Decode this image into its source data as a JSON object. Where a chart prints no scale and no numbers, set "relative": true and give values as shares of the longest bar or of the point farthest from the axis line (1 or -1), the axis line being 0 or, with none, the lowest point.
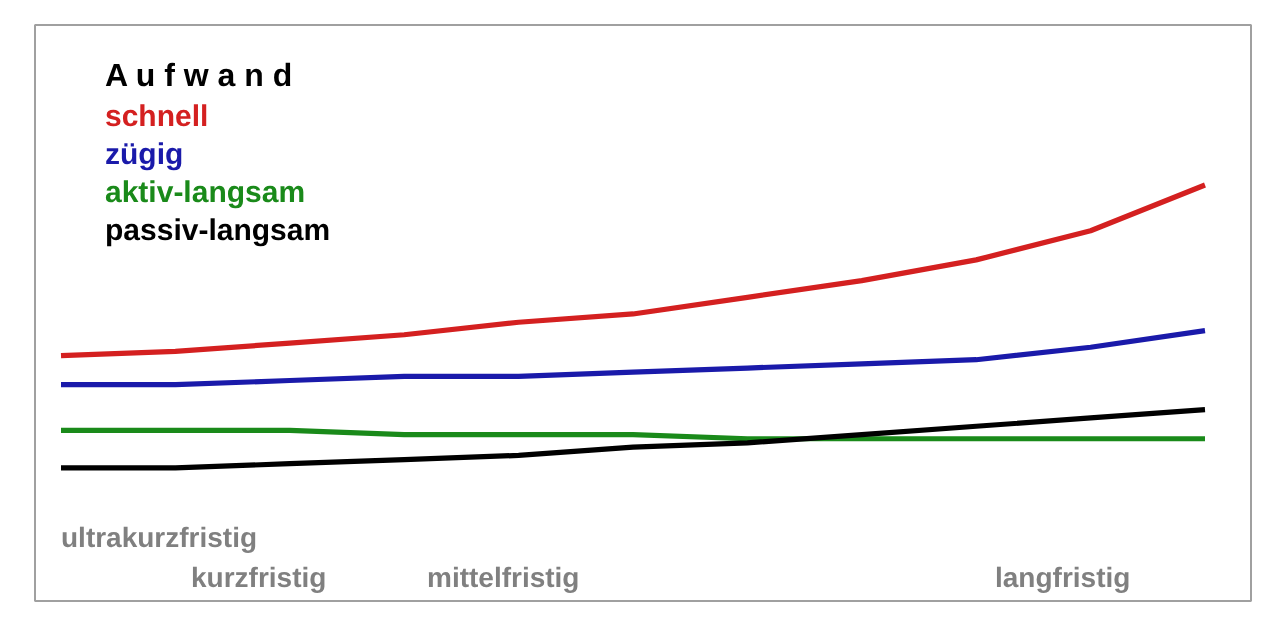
{
  "chart_data": {
    "type": "line",
    "relative": true,
    "legend_title": "A u f w a n d",
    "legend": "top left",
    "grid": false,
    "categories": [
      null,
      null,
      null,
      null,
      null,
      null,
      null,
      null,
      null,
      null,
      null
    ],
    "series": [
      {
        "name": "schnell",
        "color": "#d42020",
        "values": [
          0.59,
          0.6,
          0.62,
          0.64,
          0.67,
          0.69,
          0.73,
          0.77,
          0.82,
          0.89,
          1.0
        ]
      },
      {
        "name": "zügig",
        "color": "#1a1aaa",
        "values": [
          0.52,
          0.52,
          0.53,
          0.54,
          0.54,
          0.55,
          0.56,
          0.57,
          0.58,
          0.61,
          0.65
        ]
      },
      {
        "name": "aktiv-langsam",
        "color": "#1a8a1a",
        "values": [
          0.41,
          0.41,
          0.41,
          0.4,
          0.4,
          0.4,
          0.39,
          0.39,
          0.39,
          0.39,
          0.39
        ]
      },
      {
        "name": "passiv-langsam",
        "color": "#000000",
        "values": [
          0.32,
          0.32,
          0.33,
          0.34,
          0.35,
          0.37,
          0.38,
          0.4,
          0.42,
          0.44,
          0.46
        ]
      }
    ],
    "annotations": [
      "ultrakurzfristig",
      "kurzfristig",
      "mittelfristig",
      "langfristig"
    ]
  }
}
